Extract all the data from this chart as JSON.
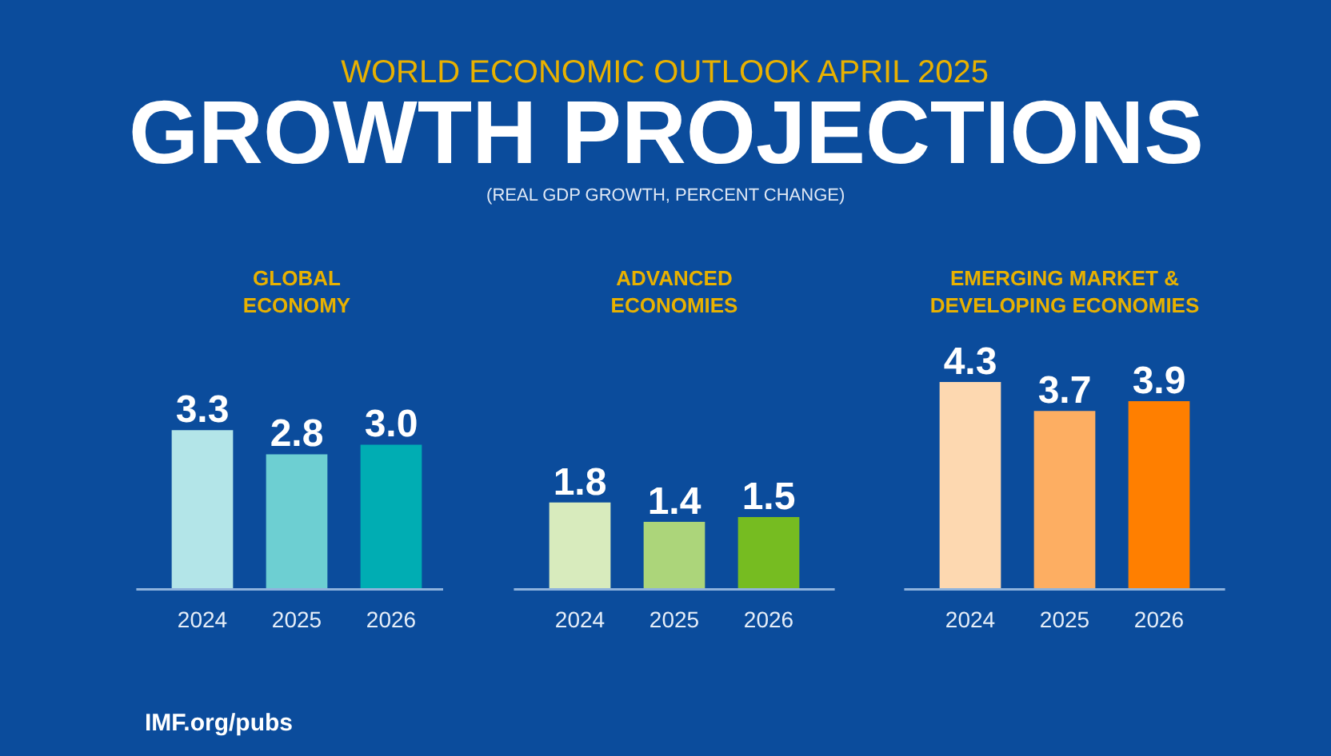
{
  "chart_data": [
    {
      "type": "other",
      "title": "GROWTH PROJECTIONS",
      "subtitle": "(REAL GDP GROWTH, PERCENT CHANGE)",
      "annotations": [
        "WORLD ECONOMIC OUTLOOK APRIL 2025",
        "IMF.org/pubs"
      ]
    },
    {
      "type": "bar",
      "title": "GLOBAL\nECONOMY",
      "categories": [
        "2024",
        "2025",
        "2026"
      ],
      "values": [
        3.3,
        2.8,
        3.0
      ],
      "value_labels": [
        "3.3",
        "2.8",
        "3.0"
      ],
      "colors": [
        "#b3e5e8",
        "#6dcfd2",
        "#00adb3"
      ]
    },
    {
      "type": "bar",
      "title": "ADVANCED\nECONOMIES",
      "categories": [
        "2024",
        "2025",
        "2026"
      ],
      "values": [
        1.8,
        1.4,
        1.5
      ],
      "value_labels": [
        "1.8",
        "1.4",
        "1.5"
      ],
      "colors": [
        "#d8ebbd",
        "#acd57a",
        "#76bc21"
      ]
    },
    {
      "type": "bar",
      "title": "EMERGING MARKET &\nDEVELOPING ECONOMIES",
      "categories": [
        "2024",
        "2025",
        "2026"
      ],
      "values": [
        4.3,
        3.7,
        3.9
      ],
      "value_labels": [
        "4.3",
        "3.7",
        "3.9"
      ],
      "colors": [
        "#fdd8b0",
        "#fdae62",
        "#ff7f00"
      ]
    }
  ]
}
